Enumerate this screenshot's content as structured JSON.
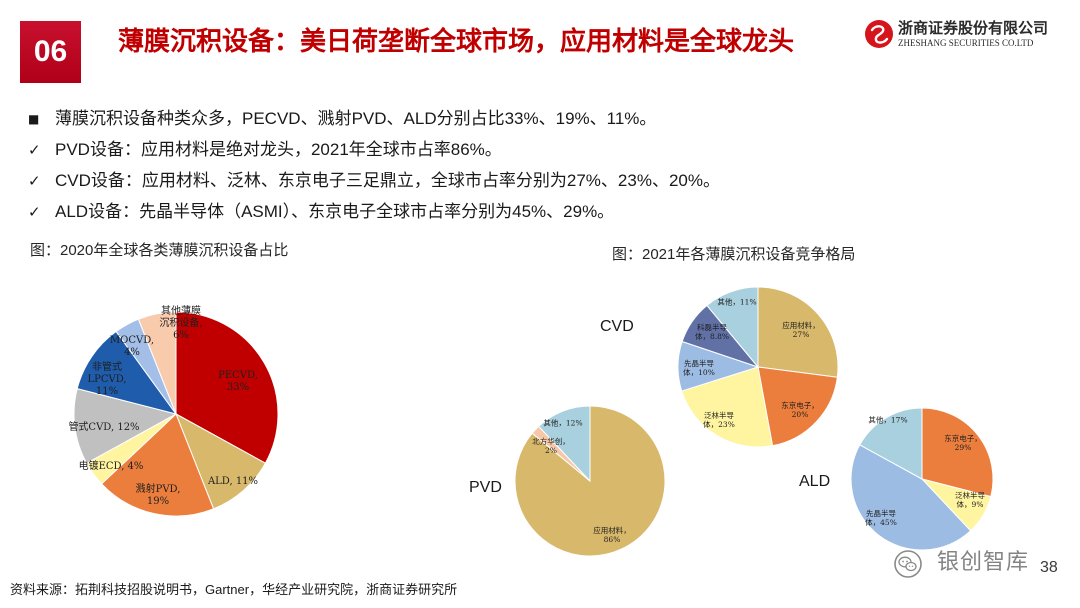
{
  "header": {
    "section_number": "06",
    "title": "薄膜沉积设备：美日荷垄断全球市场，应用材料是全球龙头",
    "company_cn": "浙商证券股份有限公司",
    "company_en": "ZHESHANG SECURITIES CO.LTD",
    "logo_icon": "zheshang-logo-icon"
  },
  "bullets": [
    {
      "marker": "■",
      "text": "薄膜沉积设备种类众多，PECVD、溅射PVD、ALD分别占比33%、19%、11%。"
    },
    {
      "marker": "✓",
      "text": "PVD设备：应用材料是绝对龙头，2021年全球市占率86%。"
    },
    {
      "marker": "✓",
      "text": "CVD设备：应用材料、泛林、东京电子三足鼎立，全球市占率分别为27%、23%、20%。"
    },
    {
      "marker": "✓",
      "text": "ALD设备：先晶半导体（ASMI）、东京电子全球市占率分别为45%、29%。"
    }
  ],
  "figures": {
    "right_caption": "图：2021年各薄膜沉积设备竞争格局"
  },
  "chart_data": [
    {
      "type": "pie",
      "title": "图：2020年全球各类薄膜沉积设备占比",
      "categories": [
        "PECVD",
        "ALD",
        "溅射PVD",
        "电镀ECD",
        "管式CVD",
        "非管式LPCVD",
        "MOCVD",
        "其他薄膜沉积设备"
      ],
      "values": [
        33,
        11,
        19,
        4,
        12,
        11,
        4,
        6
      ],
      "unit": "%",
      "data_labels": [
        "PECVD, 33%",
        "ALD, 11%",
        "溅射PVD, 19%",
        "电镀ECD, 4%",
        "管式CVD, 12%",
        "非管式LPCVD, 11%",
        "MOCVD, 4%",
        "其他薄膜沉积设备, 6%"
      ],
      "colors": [
        "#C00000",
        "#D8B86B",
        "#EB7E3D",
        "#FFF4A0",
        "#C0C0C0",
        "#1F5CAB",
        "#A4BFE7",
        "#F8CBAD"
      ]
    },
    {
      "type": "pie",
      "title": "CVD",
      "categories": [
        "应用材料",
        "东京电子",
        "泛林半导体",
        "先晶半导体",
        "科磊半导体",
        "其他"
      ],
      "values": [
        27,
        20,
        23,
        10,
        8.8,
        11
      ],
      "unit": "%",
      "data_labels": [
        "应用材料，27%",
        "东京电子，20%",
        "泛林半导体，23%",
        "先晶半导体，10%",
        "科磊半导体，8.8%",
        "其他，11%"
      ],
      "colors": [
        "#D8B86B",
        "#EB7E3D",
        "#FFF4A0",
        "#9DBCE3",
        "#6171A6",
        "#A9D0DE"
      ]
    },
    {
      "type": "pie",
      "title": "PVD",
      "categories": [
        "应用材料",
        "北方华创",
        "其他"
      ],
      "values": [
        86,
        2,
        12
      ],
      "unit": "%",
      "data_labels": [
        "应用材料，86%",
        "北方华创，2%",
        "其他，12%"
      ],
      "colors": [
        "#D8B86B",
        "#F6C8A7",
        "#A9D0DE"
      ]
    },
    {
      "type": "pie",
      "title": "ALD",
      "categories": [
        "东京电子",
        "泛林半导体",
        "先晶半导体",
        "其他"
      ],
      "values": [
        29,
        9,
        45,
        17
      ],
      "unit": "%",
      "data_labels": [
        "东京电子，29%",
        "泛林半导体，9%",
        "先晶半导体，45%",
        "其他，17%"
      ],
      "colors": [
        "#EB7E3D",
        "#FFF4A0",
        "#9DBCE3",
        "#A9D0DE"
      ]
    }
  ],
  "footer": {
    "source": "资料来源：拓荆科技招股说明书，Gartner，华经产业研究院，浙商证券研究所",
    "watermark": "银创智库",
    "watermark_icon": "wechat-icon",
    "page_number": "38"
  },
  "colors": {
    "accent": "#C00000",
    "logo_red": "#D6141B"
  }
}
